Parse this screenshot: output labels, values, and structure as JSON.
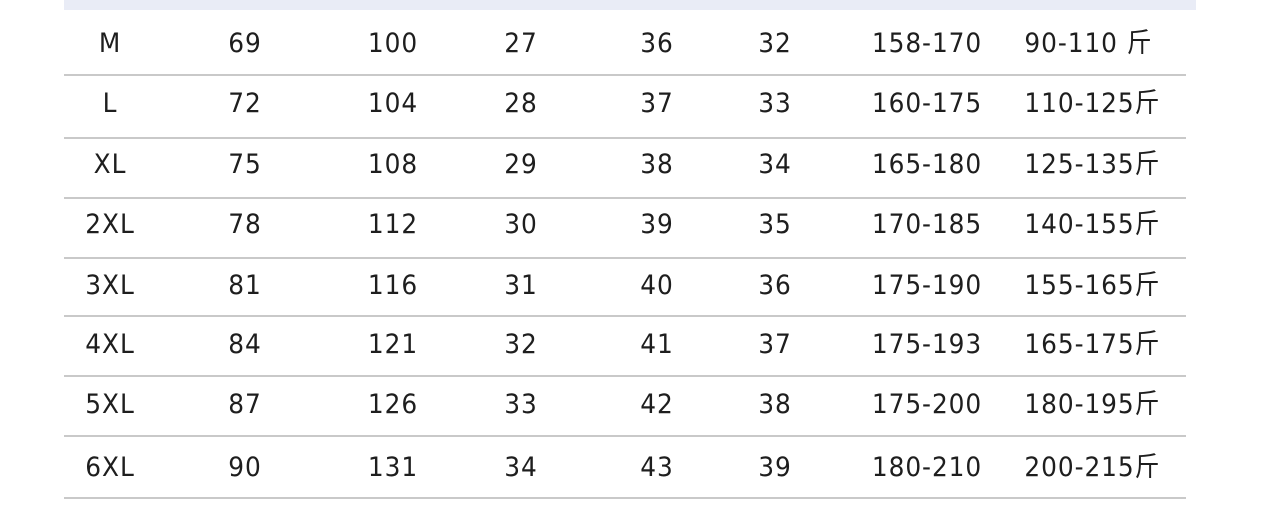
{
  "table": {
    "rows": [
      [
        "M",
        "69",
        "100",
        "27",
        "36",
        "32",
        "158-170",
        "90-110 斤"
      ],
      [
        "L",
        "72",
        "104",
        "28",
        "37",
        "33",
        "160-175",
        "110-125斤"
      ],
      [
        "XL",
        "75",
        "108",
        "29",
        "38",
        "34",
        "165-180",
        "125-135斤"
      ],
      [
        "2XL",
        "78",
        "112",
        "30",
        "39",
        "35",
        "170-185",
        "140-155斤"
      ],
      [
        "3XL",
        "81",
        "116",
        "31",
        "40",
        "36",
        "175-190",
        "155-165斤"
      ],
      [
        "4XL",
        "84",
        "121",
        "32",
        "41",
        "37",
        "175-193",
        "165-175斤"
      ],
      [
        "5XL",
        "87",
        "126",
        "33",
        "42",
        "38",
        "175-200",
        "180-195斤"
      ],
      [
        "6XL",
        "90",
        "131",
        "34",
        "43",
        "39",
        "180-210",
        "200-215斤"
      ]
    ]
  }
}
